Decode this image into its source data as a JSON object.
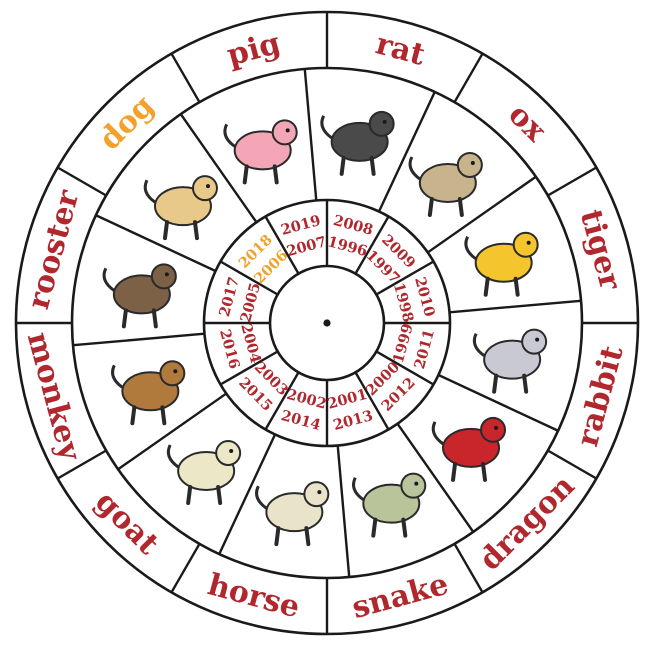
{
  "colors": {
    "text": "#b0282e",
    "highlight": "#f2a22a",
    "line": "#1a1a1a",
    "background": "#ffffff"
  },
  "highlighted_sign": "dog",
  "signs": [
    {
      "name": "rat",
      "years": [
        "2008",
        "1996"
      ],
      "icon": "rat-icon"
    },
    {
      "name": "ox",
      "years": [
        "2009",
        "1997"
      ],
      "icon": "ox-icon"
    },
    {
      "name": "tiger",
      "years": [
        "2010",
        "1998"
      ],
      "icon": "tiger-icon"
    },
    {
      "name": "rabbit",
      "years": [
        "2011",
        "1999"
      ],
      "icon": "rabbit-icon"
    },
    {
      "name": "dragon",
      "years": [
        "2012",
        "2000"
      ],
      "icon": "dragon-icon"
    },
    {
      "name": "snake",
      "years": [
        "2013",
        "2001"
      ],
      "icon": "snake-icon"
    },
    {
      "name": "horse",
      "years": [
        "2014",
        "2002"
      ],
      "icon": "horse-icon"
    },
    {
      "name": "goat",
      "years": [
        "2015",
        "2003"
      ],
      "icon": "goat-icon"
    },
    {
      "name": "monkey",
      "years": [
        "2016",
        "2004"
      ],
      "icon": "monkey-icon"
    },
    {
      "name": "rooster",
      "years": [
        "2017",
        "2005"
      ],
      "icon": "rooster-icon"
    },
    {
      "name": "dog",
      "years": [
        "2018",
        "2006"
      ],
      "icon": "dog-icon"
    },
    {
      "name": "pig",
      "years": [
        "2019",
        "2007"
      ],
      "icon": "pig-icon"
    }
  ]
}
